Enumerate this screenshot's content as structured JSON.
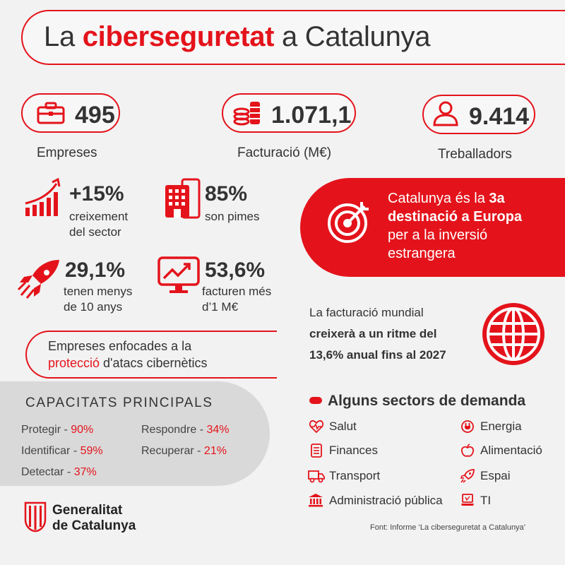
{
  "title": {
    "prefix": "La ",
    "highlight": "ciberseguretat",
    "suffix": " a Catalunya"
  },
  "stats_top": [
    {
      "value": "495",
      "label": "Empreses",
      "icon": "briefcase-icon"
    },
    {
      "value": "1.071,1",
      "label": "Facturació (M€)",
      "icon": "coins-icon"
    },
    {
      "value": "9.414",
      "label": "Treballadors",
      "icon": "person-icon"
    }
  ],
  "stats_small": [
    {
      "value": "+15%",
      "line1": "creixement",
      "line2": "del sector",
      "icon": "growth-chart-icon"
    },
    {
      "value": "85%",
      "line1": "son pimes",
      "line2": "",
      "icon": "building-icon"
    },
    {
      "value": "29,1%",
      "line1": "tenen menys",
      "line2": "de 10 anys",
      "icon": "rocket-icon"
    },
    {
      "value": "53,6%",
      "line1": "facturen més",
      "line2": "d’1 M€",
      "icon": "monitor-chart-icon"
    }
  ],
  "banner": {
    "line1_pre": "Catalunya és la ",
    "line1_bold": "3a",
    "line2_bold": "destinació a Europa",
    "line3": "per a la inversió",
    "line4": "estrangera",
    "icon": "target-icon"
  },
  "growth": {
    "line1": "La facturació mundial",
    "line2": "creixerà a un ritme del",
    "line3": "13,6% anual fins al 2027",
    "icon": "globe-icon"
  },
  "focus": {
    "line1": "Empreses enfocades a la",
    "highlight": "protecció",
    "rest": " d'atacs cibernètics"
  },
  "capacitats": {
    "title": "CAPACITATS PRINCIPALS",
    "items": [
      {
        "name": "Protegir - ",
        "pct": "90%"
      },
      {
        "name": "Identificar - ",
        "pct": "59%"
      },
      {
        "name": "Detectar - ",
        "pct": "37%"
      },
      {
        "name": "Respondre - ",
        "pct": "34%"
      },
      {
        "name": "Recuperar - ",
        "pct": "21%"
      }
    ]
  },
  "sectors": {
    "title": "Alguns sectors de demanda",
    "items": [
      {
        "label": "Salut",
        "icon": "heart-pulse-icon"
      },
      {
        "label": "Finances",
        "icon": "document-list-icon"
      },
      {
        "label": "Transport",
        "icon": "truck-icon"
      },
      {
        "label": "Administració pública",
        "icon": "government-building-icon"
      },
      {
        "label": "Energia",
        "icon": "plug-icon"
      },
      {
        "label": "Alimentació",
        "icon": "apple-icon"
      },
      {
        "label": "Espai",
        "icon": "rocket-small-icon"
      },
      {
        "label": "TI",
        "icon": "laptop-icon"
      }
    ]
  },
  "footer": {
    "logo_line1": "Generalitat",
    "logo_line2": "de Catalunya",
    "source": "Font: Informe ‘La ciberseguretat a Catalunya’"
  },
  "colors": {
    "accent": "#e4131b",
    "background": "#f2f2f2",
    "panel": "#d9d9d9"
  }
}
